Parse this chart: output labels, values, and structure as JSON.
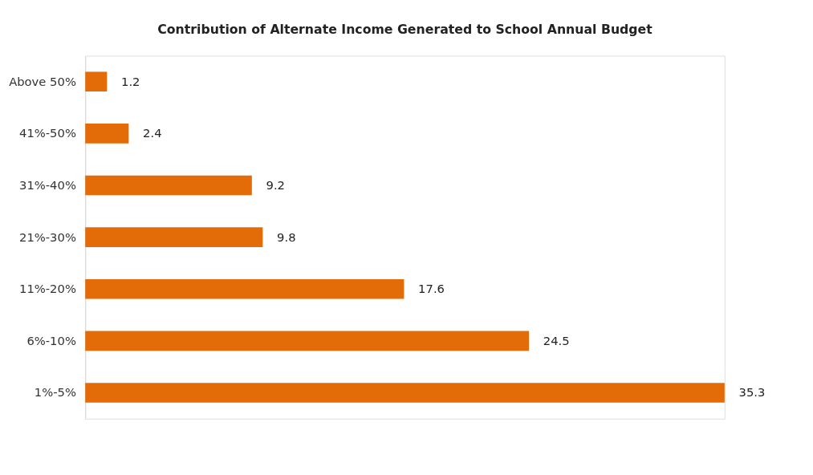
{
  "chart_data": {
    "type": "bar",
    "orientation": "horizontal",
    "title": "Contribution of Alternate Income Generated to School Annual Budget",
    "categories": [
      "Above 50%",
      "41%-50%",
      "31%-40%",
      "21%-30%",
      "11%-20%",
      "6%-10%",
      "1%-5%"
    ],
    "values": [
      1.2,
      2.4,
      9.2,
      9.8,
      17.6,
      24.5,
      35.3
    ],
    "color": "#e36c09",
    "data_labels": true,
    "grid": false,
    "tick_labels": "y"
  }
}
